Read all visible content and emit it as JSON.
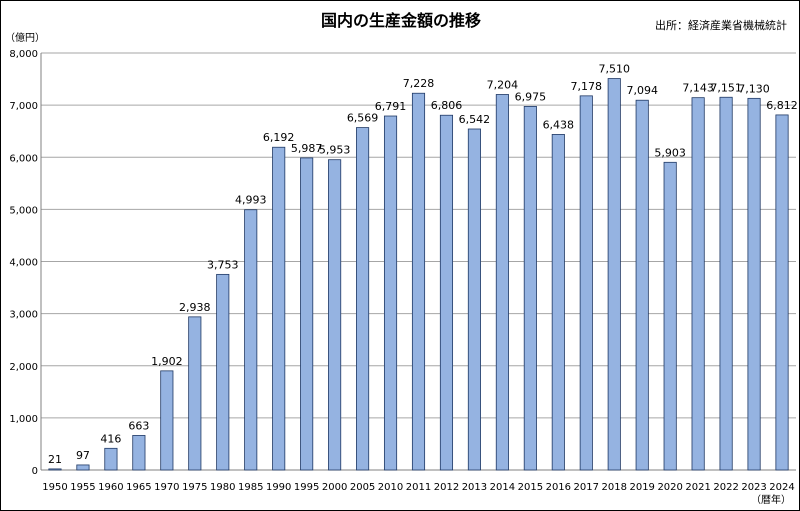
{
  "chart_data": {
    "type": "bar",
    "title": "国内の生産金額の推移",
    "source": "出所：経済産業省機械統計",
    "y_unit": "（億円）",
    "x_unit": "（暦年）",
    "ylim": [
      0,
      8000
    ],
    "yticks": [
      "0",
      "1,000",
      "2,000",
      "3,000",
      "4,000",
      "5,000",
      "6,000",
      "7,000",
      "8,000"
    ],
    "grid": true,
    "bar_color": "#95B3E1",
    "bar_stroke": "#1F3864",
    "categories": [
      "1950",
      "1955",
      "1960",
      "1965",
      "1970",
      "1975",
      "1980",
      "1985",
      "1990",
      "1995",
      "2000",
      "2005",
      "2010",
      "2011",
      "2012",
      "2013",
      "2014",
      "2015",
      "2016",
      "2017",
      "2018",
      "2019",
      "2020",
      "2021",
      "2022",
      "2023",
      "2024"
    ],
    "values": [
      21,
      97,
      416,
      663,
      1902,
      2938,
      3753,
      4993,
      6192,
      5987,
      5953,
      6569,
      6791,
      7228,
      6806,
      6542,
      7204,
      6975,
      6438,
      7178,
      7510,
      7094,
      5903,
      7143,
      7151,
      7130,
      6812
    ],
    "data_labels": [
      "21",
      "97",
      "416",
      "663",
      "1,902",
      "2,938",
      "3,753",
      "4,993",
      "6,192",
      "5,987",
      "5,953",
      "6,569",
      "6,791",
      "7,228",
      "6,806",
      "6,542",
      "7,204",
      "6,975",
      "6,438",
      "7,178",
      "7,510",
      "7,094",
      "5,903",
      "7,143",
      "7,151",
      "7,130",
      "6,812"
    ]
  }
}
